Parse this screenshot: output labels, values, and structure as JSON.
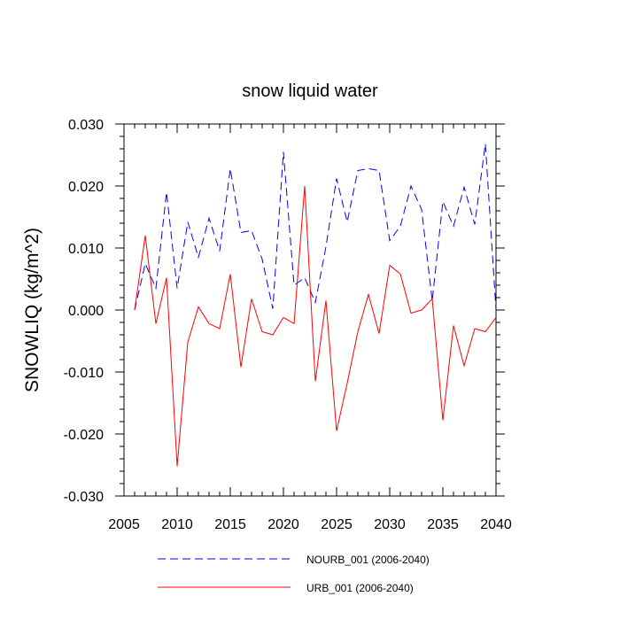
{
  "chart_data": {
    "type": "line",
    "title": "snow liquid water",
    "xlabel": "",
    "ylabel": "SNOWLIQ  (kg/m^2)",
    "xlim": [
      2005,
      2040
    ],
    "ylim": [
      -0.03,
      0.03
    ],
    "x_ticks": [
      2005,
      2010,
      2015,
      2020,
      2025,
      2030,
      2035,
      2040
    ],
    "y_ticks": [
      -0.03,
      -0.02,
      -0.01,
      0.0,
      0.01,
      0.02,
      0.03
    ],
    "x_tick_labels": [
      "2005",
      "2010",
      "2015",
      "2020",
      "2025",
      "2030",
      "2035",
      "2040"
    ],
    "y_tick_labels": [
      "-0.030",
      "-0.020",
      "-0.010",
      "0.000",
      "0.010",
      "0.020",
      "0.030"
    ],
    "grid": false,
    "legend_position": "bottom",
    "x": [
      2006,
      2007,
      2008,
      2009,
      2010,
      2011,
      2012,
      2013,
      2014,
      2015,
      2016,
      2017,
      2018,
      2019,
      2020,
      2021,
      2022,
      2023,
      2024,
      2025,
      2026,
      2027,
      2028,
      2029,
      2030,
      2031,
      2032,
      2033,
      2034,
      2035,
      2036,
      2037,
      2038,
      2039,
      2040
    ],
    "series": [
      {
        "name": "NOURB_001 (2006-2040)",
        "color": "#0000ff",
        "style": "dashed",
        "values": [
          0.0,
          0.0075,
          0.0035,
          0.019,
          0.0035,
          0.0142,
          0.0085,
          0.0148,
          0.0095,
          0.0228,
          0.0125,
          0.0128,
          0.0082,
          0.0002,
          0.0255,
          0.004,
          0.0052,
          0.0012,
          0.0102,
          0.0212,
          0.0142,
          0.0225,
          0.0228,
          0.0225,
          0.0112,
          0.0135,
          0.02,
          0.0162,
          0.0015,
          0.0175,
          0.0135,
          0.0198,
          0.0138,
          0.0268,
          0.0
        ]
      },
      {
        "name": "URB_001 (2006-2040)",
        "color": "#ff0000",
        "style": "solid",
        "values": [
          0.0,
          0.012,
          -0.0022,
          0.0052,
          -0.0252,
          -0.0052,
          0.0005,
          -0.0022,
          -0.003,
          0.0058,
          -0.0092,
          0.0018,
          -0.0035,
          -0.004,
          -0.0012,
          -0.0022,
          0.02,
          -0.0115,
          0.0015,
          -0.0195,
          -0.0118,
          -0.0035,
          0.0025,
          -0.0038,
          0.0072,
          0.0058,
          -0.0005,
          0.0,
          0.0018,
          -0.0178,
          -0.0025,
          -0.009,
          -0.003,
          -0.0035,
          -0.0012
        ]
      }
    ]
  }
}
